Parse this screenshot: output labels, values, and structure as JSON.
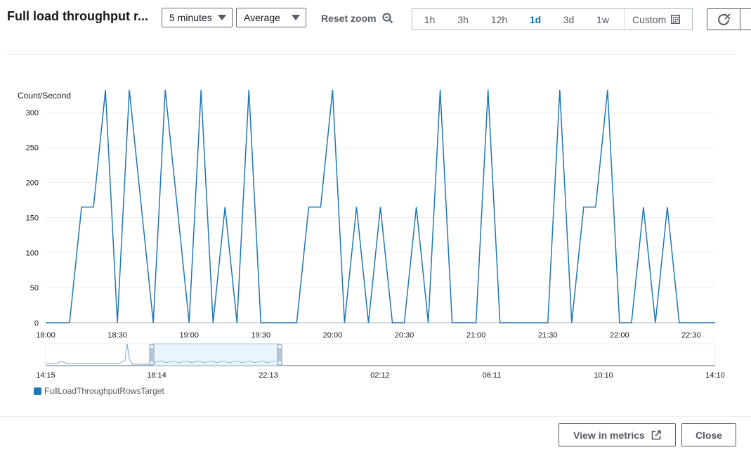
{
  "header": {
    "title": "Full load throughput r...",
    "period_select": "5 minutes",
    "statistic_select": "Average",
    "reset_zoom_label": "Reset zoom",
    "ranges": [
      "1h",
      "3h",
      "12h",
      "1d",
      "3d",
      "1w"
    ],
    "active_range": "1d",
    "custom_label": "Custom"
  },
  "chart_data": {
    "type": "line",
    "ylabel": "Count/Second",
    "ylim": [
      0,
      340
    ],
    "yticks": [
      0,
      50,
      100,
      150,
      200,
      250,
      300
    ],
    "xlim": [
      "18:00",
      "22:40"
    ],
    "xticks": [
      "18:00",
      "18:30",
      "19:00",
      "19:30",
      "20:00",
      "20:30",
      "21:00",
      "21:30",
      "22:00",
      "22:30"
    ],
    "grid": true,
    "series": [
      {
        "name": "FullLoadThroughputRowsTarget",
        "color": "#1f77b4",
        "x": [
          "18:00",
          "18:10",
          "18:15",
          "18:20",
          "18:25",
          "18:30",
          "18:35",
          "18:45",
          "18:50",
          "19:00",
          "19:05",
          "19:10",
          "19:15",
          "19:20",
          "19:25",
          "19:30",
          "19:35",
          "19:45",
          "19:50",
          "19:55",
          "20:00",
          "20:05",
          "20:10",
          "20:15",
          "20:20",
          "20:25",
          "20:30",
          "20:35",
          "20:40",
          "20:45",
          "20:50",
          "21:00",
          "21:05",
          "21:10",
          "21:15",
          "21:30",
          "21:35",
          "21:40",
          "21:45",
          "21:50",
          "21:55",
          "22:00",
          "22:05",
          "22:10",
          "22:15",
          "22:20",
          "22:25",
          "22:30",
          "22:35",
          "22:40"
        ],
        "values": [
          0,
          0,
          165,
          165,
          332,
          0,
          332,
          0,
          332,
          0,
          332,
          0,
          165,
          0,
          332,
          0,
          0,
          0,
          165,
          165,
          332,
          0,
          165,
          0,
          165,
          0,
          0,
          165,
          0,
          332,
          0,
          0,
          332,
          0,
          0,
          0,
          332,
          0,
          165,
          165,
          332,
          0,
          0,
          165,
          0,
          165,
          0,
          0,
          0,
          0
        ]
      }
    ],
    "navigator": {
      "xticks": [
        "14:15",
        "18:14",
        "22:13",
        "02:12",
        "06:11",
        "10:10",
        "14:10"
      ]
    }
  },
  "legend": [
    {
      "name": "FullLoadThroughputRowsTarget",
      "color": "#1f77b4"
    }
  ],
  "footer": {
    "view_in_metrics_label": "View in metrics",
    "close_label": "Close"
  }
}
